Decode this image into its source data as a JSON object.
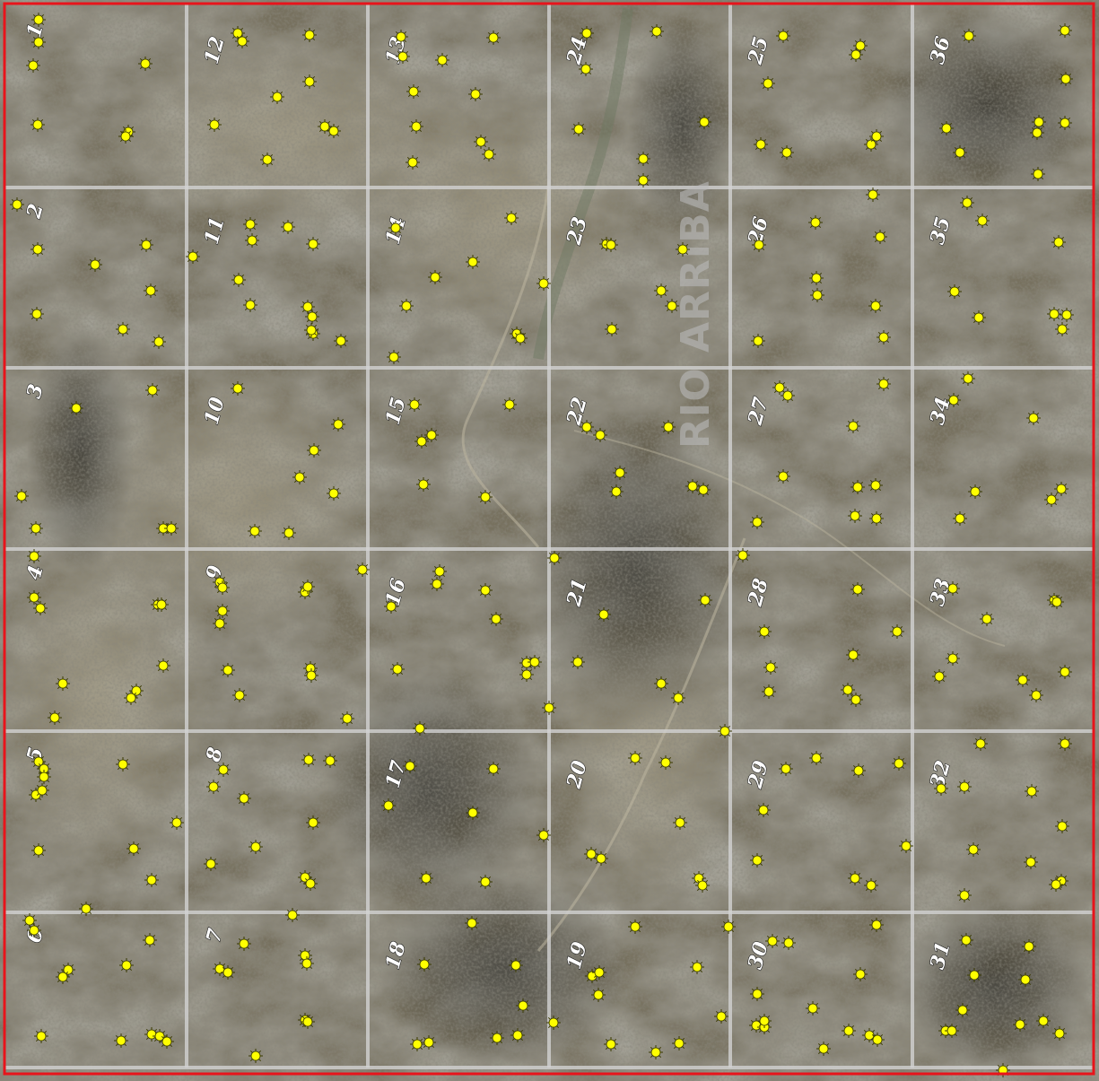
{
  "map": {
    "county_label": "RIO ARRIBA",
    "colors": {
      "boundary": "#e8141b",
      "grid": "#d2d2d2",
      "well_fill": "#ffff00",
      "well_stroke": "#3a3a00",
      "terrain_dark": "#3f3e37",
      "terrain_mid": "#6d6858",
      "terrain_light": "#9c9580"
    },
    "marker_icon": "sun-burst-icon",
    "sections": [
      [
        "1",
        "12",
        "13",
        "24",
        "25",
        "36"
      ],
      [
        "2",
        "11",
        "14",
        "23",
        "26",
        "35"
      ],
      [
        "3",
        "10",
        "15",
        "22",
        "27",
        "34"
      ],
      [
        "4",
        "9",
        "16",
        "21",
        "28",
        "33"
      ],
      [
        "5",
        "8",
        "17",
        "20",
        "29",
        "32"
      ],
      [
        "6",
        "7",
        "18",
        "19",
        "30",
        "31"
      ]
    ]
  }
}
